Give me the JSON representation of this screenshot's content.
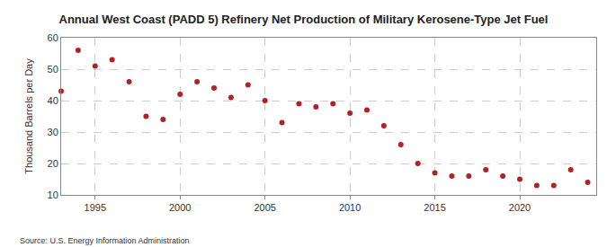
{
  "chart_data": {
    "type": "scatter",
    "title": "Annual West Coast (PADD 5) Refinery Net Production of Military Kerosene-Type Jet Fuel",
    "y_label": "Thousand Barrels per Day",
    "source": "Source: U.S. Energy Information Administration",
    "x": [
      1993,
      1994,
      1995,
      1996,
      1997,
      1998,
      1999,
      2000,
      2001,
      2002,
      2003,
      2004,
      2005,
      2006,
      2007,
      2008,
      2009,
      2010,
      2011,
      2012,
      2013,
      2014,
      2015,
      2016,
      2017,
      2018,
      2019,
      2020,
      2021,
      2022,
      2023,
      2024
    ],
    "values": [
      43,
      56,
      51,
      53,
      46,
      35,
      34,
      42,
      46,
      44,
      41,
      45,
      40,
      33,
      39,
      38,
      39,
      36,
      37,
      32,
      26,
      20,
      17,
      16,
      16,
      18,
      16,
      15,
      13,
      13,
      18,
      14
    ],
    "color": "#b22222",
    "marker": "circle",
    "xlim": [
      1993,
      2024.5
    ],
    "xticks": [
      1995,
      2000,
      2005,
      2010,
      2015,
      2020
    ],
    "ylim": [
      10,
      60
    ],
    "yticks": [
      10,
      20,
      30,
      40,
      50,
      60
    ],
    "grid": true
  }
}
